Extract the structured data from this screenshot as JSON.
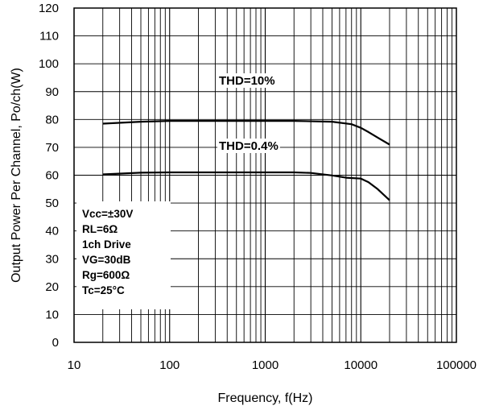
{
  "chart_data": {
    "type": "line",
    "xlabel": "Frequency, f(Hz)",
    "ylabel": "Output Power Per Channel, Po/ch(W)",
    "xscale": "log",
    "xlim": [
      10,
      100000
    ],
    "ylim": [
      0,
      120
    ],
    "x_ticks": [
      "10",
      "100",
      "1000",
      "10000",
      "100000"
    ],
    "y_ticks": [
      "0",
      "10",
      "20",
      "30",
      "40",
      "50",
      "60",
      "70",
      "80",
      "90",
      "100",
      "110",
      "120"
    ],
    "grid": "on (log minor gridlines on x)",
    "series": [
      {
        "name": "THD=10%",
        "x": [
          20,
          50,
          100,
          200,
          500,
          1000,
          2000,
          5000,
          8000,
          10000,
          12000,
          15000,
          20000
        ],
        "y": [
          78.5,
          79.2,
          79.5,
          79.5,
          79.5,
          79.5,
          79.5,
          79.2,
          78.3,
          77.0,
          75.5,
          73.5,
          71.0
        ]
      },
      {
        "name": "THD=0.4%",
        "x": [
          20,
          50,
          100,
          200,
          500,
          1000,
          2000,
          3000,
          5000,
          7000,
          10000,
          12000,
          15000,
          20000
        ],
        "y": [
          60.3,
          60.9,
          61.0,
          61.0,
          61.0,
          61.0,
          61.0,
          60.8,
          59.9,
          59.1,
          58.8,
          57.5,
          55.0,
          51.0
        ]
      }
    ],
    "conditions": [
      "Vcc=±30V",
      "RL=6Ω",
      "1ch Drive",
      "VG=30dB",
      "Rg=600Ω",
      "Tc=25°C"
    ]
  }
}
